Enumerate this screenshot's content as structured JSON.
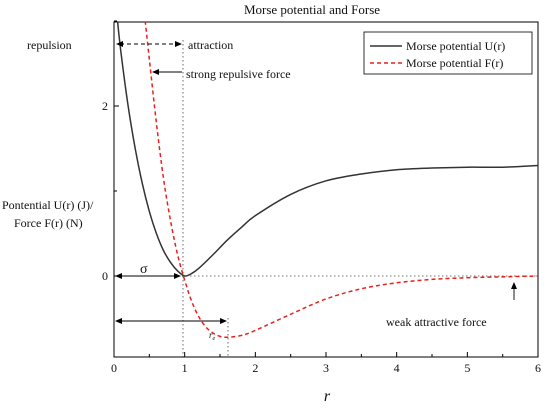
{
  "chart_data": {
    "type": "line",
    "title": "Morse potential and Forse",
    "xlabel": "r",
    "ylabel_lines": [
      "Pontential U(r) (J)/",
      "Force F(r) (N)"
    ],
    "xlim": [
      0,
      6
    ],
    "ylim": [
      -1.2,
      3.7
    ],
    "x_ticks": [
      "0",
      "1",
      "2",
      "3",
      "4",
      "5",
      "6"
    ],
    "y_ticks": [
      "0",
      "2"
    ],
    "legend": {
      "position": "top-right",
      "entries": [
        {
          "label": "Morse potential U(r)",
          "style": "solid",
          "color": "#333333"
        },
        {
          "label": "Morse potential F(r)",
          "style": "dashed",
          "color": "#e8211c"
        }
      ]
    },
    "series": [
      {
        "name": "Morse potential U(r)",
        "color": "#333333",
        "x": [
          0,
          0.05,
          0.1,
          0.2,
          0.3,
          0.4,
          0.5,
          0.6,
          0.7,
          0.8,
          0.9,
          1.0,
          1.1,
          1.2,
          1.4,
          1.6,
          1.8,
          2.0,
          2.5,
          3.0,
          3.5,
          4.0,
          4.5,
          5.0,
          5.5,
          6.0
        ],
        "y": [
          3.45,
          3.0,
          2.62,
          2.0,
          1.5,
          1.09,
          0.76,
          0.5,
          0.3,
          0.16,
          0.06,
          0.0,
          0.03,
          0.09,
          0.25,
          0.42,
          0.57,
          0.71,
          0.96,
          1.12,
          1.2,
          1.25,
          1.27,
          1.28,
          1.28,
          1.3
        ]
      },
      {
        "name": "Morse potential F(r)",
        "color": "#e8211c",
        "x": [
          0.3,
          0.4,
          0.5,
          0.6,
          0.7,
          0.8,
          0.9,
          1.0,
          1.1,
          1.2,
          1.3,
          1.4,
          1.5,
          1.6,
          1.8,
          2.0,
          2.5,
          3.0,
          3.5,
          4.0,
          4.5,
          5.0,
          5.5,
          6.0
        ],
        "y": [
          3.9,
          3.3,
          2.55,
          1.8,
          1.15,
          0.65,
          0.25,
          -0.05,
          -0.3,
          -0.48,
          -0.6,
          -0.67,
          -0.71,
          -0.72,
          -0.7,
          -0.64,
          -0.45,
          -0.27,
          -0.15,
          -0.08,
          -0.04,
          -0.02,
          -0.01,
          0.0
        ]
      }
    ],
    "annotations": {
      "repulsion": "repulsion",
      "attraction": "attraction",
      "strong_repulsive": "strong repulsive force",
      "weak_attractive": "weak attractive force",
      "sigma": "σ",
      "re": "r"
    }
  }
}
